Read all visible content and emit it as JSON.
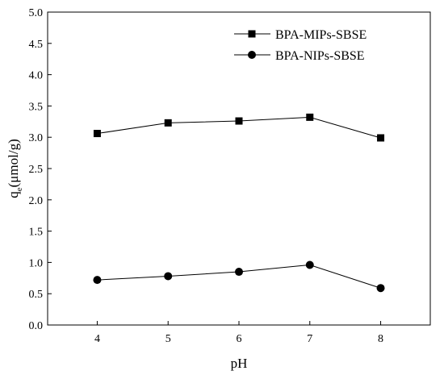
{
  "chart_data": {
    "type": "line",
    "title": "",
    "xlabel": "pH",
    "ylabel": {
      "main": "q",
      "sub": "e",
      "unit": "(μmol/g)"
    },
    "x": [
      4,
      5,
      6,
      7,
      8
    ],
    "xlim": [
      3.3,
      8.7
    ],
    "ylim": [
      0,
      5
    ],
    "x_ticks": [
      "4",
      "5",
      "6",
      "7",
      "8"
    ],
    "y_ticks": [
      "0.0",
      "0.5",
      "1.0",
      "1.5",
      "2.0",
      "2.5",
      "3.0",
      "3.5",
      "4.0",
      "4.5",
      "5.0"
    ],
    "grid": false,
    "legend_position": "top-right",
    "series": [
      {
        "name": "BPA-MIPs-SBSE",
        "marker": "square",
        "color": "#000000",
        "values": [
          3.06,
          3.23,
          3.26,
          3.32,
          2.99
        ]
      },
      {
        "name": "BPA-NIPs-SBSE",
        "marker": "circle",
        "color": "#000000",
        "values": [
          0.72,
          0.78,
          0.85,
          0.96,
          0.59
        ]
      }
    ]
  }
}
